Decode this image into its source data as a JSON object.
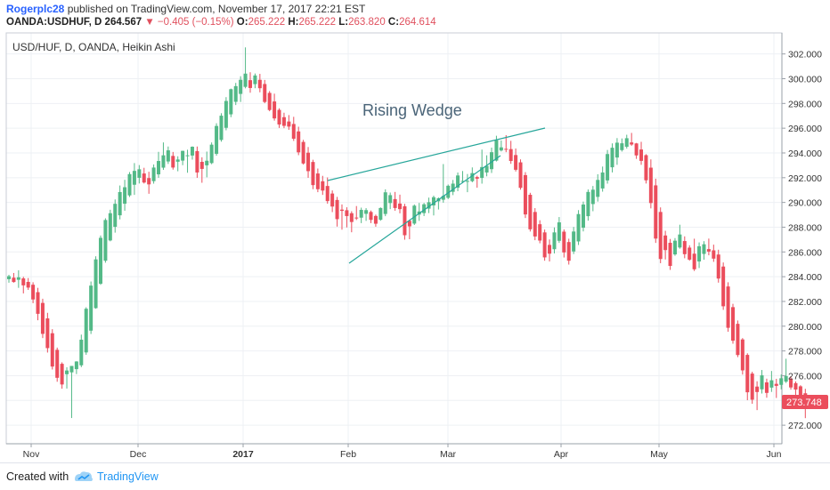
{
  "header": {
    "author": "Rogerplc28",
    "published_text": " published on TradingView.com, November 17, 2017 22:21 EST",
    "symbol": "OANDA:USDHUF, D",
    "last": "264.567",
    "change": "−0.405 (−0.15%)",
    "open_label": "O:",
    "open": "265.222",
    "high_label": "H:",
    "high": "265.222",
    "low_label": "L:",
    "low": "263.820",
    "close_label": "C:",
    "close": "264.614"
  },
  "chart_data": {
    "type": "candlestick",
    "title": "USD/HUF, D, OANDA, Heikin Ashi",
    "annotation": "Rising Wedge",
    "last_price_label": "273.748",
    "ylim": [
      270.5,
      303.7
    ],
    "y_ticks": [
      "272.000",
      "274.000",
      "276.000",
      "278.000",
      "280.000",
      "282.000",
      "284.000",
      "286.000",
      "288.000",
      "290.000",
      "292.000",
      "294.000",
      "296.000",
      "298.000",
      "300.000",
      "302.000"
    ],
    "x_ticks": [
      "Nov",
      "Dec",
      "2017",
      "Feb",
      "Mar",
      "Apr",
      "May",
      "Jun"
    ],
    "colors": {
      "up": "#53b987",
      "down": "#eb4d5c",
      "trendline": "#26a69a",
      "price_tag": "#eb4d5c"
    },
    "candles_ohlc": [
      [
        283.8,
        284.15,
        283.52,
        284.04
      ],
      [
        283.92,
        284.3,
        283.52,
        283.57
      ],
      [
        283.75,
        284.52,
        283.1,
        283.95
      ],
      [
        283.86,
        283.99,
        282.65,
        283.3
      ],
      [
        283.58,
        283.89,
        282.93,
        283.12
      ],
      [
        283.35,
        283.55,
        281.86,
        282.16
      ],
      [
        282.75,
        283.1,
        280.48,
        281.0
      ],
      [
        281.88,
        282.22,
        279.04,
        279.38
      ],
      [
        280.63,
        281.08,
        277.87,
        278.23
      ],
      [
        279.43,
        279.76,
        276.5,
        276.74
      ],
      [
        278.09,
        278.27,
        275.51,
        275.83
      ],
      [
        276.96,
        277.08,
        274.95,
        275.29
      ],
      [
        276.12,
        276.68,
        274.96,
        276.42
      ],
      [
        276.27,
        276.71,
        272.58,
        276.79
      ],
      [
        276.53,
        277.17,
        276.13,
        277.15
      ],
      [
        276.84,
        279.32,
        276.69,
        278.91
      ],
      [
        277.88,
        281.53,
        277.69,
        281.41
      ],
      [
        279.64,
        283.61,
        279.37,
        283.28
      ],
      [
        281.46,
        285.65,
        281.41,
        285.4
      ],
      [
        283.43,
        287.33,
        283.34,
        287.14
      ],
      [
        285.29,
        288.72,
        285.13,
        288.58
      ],
      [
        286.93,
        289.41,
        286.86,
        289.13
      ],
      [
        288.03,
        290.24,
        287.56,
        289.89
      ],
      [
        288.96,
        291.37,
        288.63,
        290.84
      ],
      [
        289.9,
        291.83,
        289.33,
        291.23
      ],
      [
        290.57,
        292.45,
        290.44,
        292.29
      ],
      [
        291.43,
        293.18,
        290.61,
        292.55
      ],
      [
        291.99,
        293.02,
        291.53,
        292.68
      ],
      [
        292.34,
        292.8,
        291.53,
        291.61
      ],
      [
        291.97,
        292.48,
        290.7,
        291.46
      ],
      [
        291.72,
        293.07,
        291.52,
        292.82
      ],
      [
        292.27,
        294.09,
        291.99,
        293.35
      ],
      [
        292.81,
        294.85,
        292.63,
        293.81
      ],
      [
        293.31,
        294.52,
        293.11,
        294.21
      ],
      [
        293.76,
        294.08,
        292.65,
        292.82
      ],
      [
        293.29,
        293.73,
        292.52,
        293.47
      ],
      [
        293.38,
        294.18,
        293.01,
        294.17
      ],
      [
        293.78,
        294.26,
        292.4,
        293.81
      ],
      [
        293.79,
        294.53,
        293.46,
        294.5
      ],
      [
        294.15,
        294.52,
        291.99,
        292.42
      ],
      [
        293.28,
        293.65,
        291.59,
        292.71
      ],
      [
        293.0,
        294.11,
        292.03,
        293.37
      ],
      [
        293.18,
        294.85,
        293.09,
        294.67
      ],
      [
        293.93,
        296.4,
        293.78,
        296.18
      ],
      [
        295.05,
        297.21,
        294.91,
        297.01
      ],
      [
        296.03,
        298.51,
        295.83,
        298.2
      ],
      [
        297.12,
        299.2,
        296.89,
        299.15
      ],
      [
        298.13,
        299.66,
        297.87,
        299.4
      ],
      [
        298.77,
        300.2,
        298.12,
        299.91
      ],
      [
        299.34,
        302.53,
        299.22,
        300.41
      ],
      [
        299.88,
        300.52,
        298.87,
        299.25
      ],
      [
        299.56,
        300.42,
        299.23,
        300.26
      ],
      [
        299.91,
        300.39,
        298.9,
        299.23
      ],
      [
        299.57,
        299.9,
        298.02,
        298.12
      ],
      [
        298.85,
        299.0,
        297.37,
        297.47
      ],
      [
        298.16,
        298.79,
        296.61,
        296.79
      ],
      [
        297.48,
        297.61,
        296.02,
        296.3
      ],
      [
        296.89,
        297.25,
        296.0,
        296.19
      ],
      [
        296.54,
        297.06,
        295.87,
        296.13
      ],
      [
        296.34,
        296.92,
        294.97,
        295.15
      ],
      [
        295.74,
        296.12,
        293.82,
        294.05
      ],
      [
        294.89,
        295.06,
        293.06,
        293.15
      ],
      [
        294.02,
        294.48,
        291.99,
        292.53
      ],
      [
        293.27,
        293.45,
        291.07,
        291.4
      ],
      [
        292.34,
        292.74,
        290.83,
        291.07
      ],
      [
        291.71,
        292.15,
        290.61,
        290.96
      ],
      [
        291.33,
        292.02,
        289.9,
        290.11
      ],
      [
        290.72,
        290.97,
        289.22,
        289.67
      ],
      [
        290.2,
        290.45,
        288.05,
        288.65
      ],
      [
        289.42,
        289.84,
        287.8,
        289.32
      ],
      [
        289.37,
        289.61,
        287.98,
        288.9
      ],
      [
        289.13,
        289.29,
        287.59,
        288.42
      ],
      [
        288.78,
        289.71,
        288.58,
        288.76
      ],
      [
        288.77,
        289.58,
        288.33,
        289.4
      ],
      [
        289.08,
        289.54,
        288.51,
        289.38
      ],
      [
        289.23,
        289.35,
        288.33,
        288.59
      ],
      [
        288.91,
        289.02,
        288.04,
        288.28
      ],
      [
        288.6,
        289.6,
        288.52,
        289.55
      ],
      [
        289.07,
        291.06,
        288.89,
        290.82
      ],
      [
        289.95,
        290.8,
        289.46,
        290.59
      ],
      [
        290.27,
        290.85,
        289.33,
        289.55
      ],
      [
        289.91,
        290.63,
        289.12,
        289.46
      ],
      [
        289.69,
        289.89,
        286.99,
        287.35
      ],
      [
        288.52,
        288.62,
        287.03,
        288.07
      ],
      [
        288.29,
        289.84,
        288.18,
        289.74
      ],
      [
        289.02,
        289.96,
        288.51,
        289.27
      ],
      [
        289.14,
        289.96,
        288.9,
        289.85
      ],
      [
        289.5,
        290.39,
        289.14,
        290.02
      ],
      [
        289.76,
        290.55,
        288.95,
        290.42
      ],
      [
        290.09,
        290.4,
        289.43,
        290.34
      ],
      [
        290.22,
        293.1,
        289.98,
        290.53
      ],
      [
        290.37,
        291.45,
        290.27,
        291.35
      ],
      [
        290.86,
        291.82,
        290.59,
        291.52
      ],
      [
        291.19,
        292.42,
        290.91,
        292.18
      ],
      [
        291.68,
        292.54,
        291.55,
        291.74
      ],
      [
        291.71,
        292.3,
        290.83,
        291.74
      ],
      [
        291.72,
        292.83,
        291.63,
        292.37
      ],
      [
        292.05,
        292.16,
        291.19,
        291.92
      ],
      [
        291.98,
        294.27,
        291.52,
        292.86
      ],
      [
        292.42,
        293.81,
        292.11,
        292.96
      ],
      [
        292.69,
        294.43,
        292.38,
        294.06
      ],
      [
        293.38,
        295.39,
        293.31,
        295.03
      ],
      [
        294.2,
        295.01,
        294.12,
        294.45
      ],
      [
        294.33,
        295.44,
        294.06,
        294.3
      ],
      [
        294.31,
        294.98,
        293.12,
        293.35
      ],
      [
        293.83,
        294.36,
        292.5,
        292.64
      ],
      [
        293.24,
        293.48,
        291.03,
        291.18
      ],
      [
        292.21,
        292.45,
        288.74,
        289.03
      ],
      [
        290.62,
        290.78,
        287.65,
        287.83
      ],
      [
        289.23,
        289.54,
        286.95,
        287.25
      ],
      [
        288.24,
        288.56,
        286.7,
        286.92
      ],
      [
        287.58,
        287.81,
        285.29,
        285.56
      ],
      [
        286.57,
        287.01,
        285.23,
        285.86
      ],
      [
        286.22,
        287.98,
        285.88,
        287.58
      ],
      [
        286.9,
        288.82,
        286.73,
        288.39
      ],
      [
        287.64,
        287.82,
        285.55,
        285.96
      ],
      [
        286.8,
        287.07,
        284.98,
        285.29
      ],
      [
        286.04,
        288.02,
        285.83,
        287.65
      ],
      [
        286.85,
        289.38,
        286.56,
        289.06
      ],
      [
        287.96,
        290.07,
        287.66,
        289.83
      ],
      [
        288.89,
        291.05,
        288.53,
        290.85
      ],
      [
        289.87,
        291.33,
        289.29,
        291.03
      ],
      [
        290.45,
        292.28,
        290.07,
        291.82
      ],
      [
        291.13,
        292.9,
        290.87,
        292.42
      ],
      [
        291.78,
        294.24,
        291.52,
        293.91
      ],
      [
        292.84,
        294.77,
        292.43,
        294.42
      ],
      [
        293.63,
        295.2,
        293.04,
        294.83
      ],
      [
        294.23,
        295.17,
        294.11,
        294.78
      ],
      [
        294.5,
        295.47,
        294.35,
        295.19
      ],
      [
        294.85,
        295.62,
        294.58,
        294.68
      ],
      [
        294.77,
        294.81,
        293.52,
        293.8
      ],
      [
        294.28,
        294.9,
        293.04,
        293.36
      ],
      [
        293.82,
        293.9,
        291.53,
        291.79
      ],
      [
        292.81,
        293.48,
        289.52,
        289.95
      ],
      [
        291.38,
        291.92,
        286.73,
        287.08
      ],
      [
        289.23,
        289.6,
        285.09,
        285.43
      ],
      [
        287.33,
        287.71,
        285.39,
        286.15
      ],
      [
        286.74,
        287.05,
        284.55,
        284.87
      ],
      [
        285.8,
        287.12,
        285.69,
        286.91
      ],
      [
        286.36,
        288.2,
        286.26,
        287.41
      ],
      [
        286.88,
        287.26,
        285.49,
        285.82
      ],
      [
        286.35,
        286.54,
        285.29,
        285.38
      ],
      [
        285.86,
        287.07,
        284.46,
        284.6
      ],
      [
        285.23,
        286.77,
        284.7,
        286.46
      ],
      [
        285.84,
        286.87,
        285.37,
        286.62
      ],
      [
        286.23,
        287.08,
        285.73,
        286.03
      ],
      [
        286.13,
        286.59,
        285.2,
        285.46
      ],
      [
        285.79,
        286.18,
        283.52,
        283.85
      ],
      [
        284.82,
        285.15,
        281.32,
        281.61
      ],
      [
        283.21,
        283.55,
        279.55,
        279.87
      ],
      [
        281.54,
        281.81,
        278.58,
        278.83
      ],
      [
        280.19,
        280.46,
        277.5,
        277.67
      ],
      [
        278.93,
        279.04,
        276.09,
        276.43
      ],
      [
        277.68,
        277.81,
        274.02,
        274.66
      ],
      [
        276.17,
        276.32,
        273.73,
        274.06
      ],
      [
        275.12,
        275.55,
        273.22,
        274.68
      ],
      [
        274.9,
        276.46,
        274.56,
        276.03
      ],
      [
        275.46,
        275.76,
        274.22,
        274.61
      ],
      [
        275.04,
        276.38,
        274.69,
        275.63
      ],
      [
        275.34,
        275.75,
        274.2,
        275.18
      ],
      [
        275.26,
        276.1,
        274.9,
        275.79
      ],
      [
        275.52,
        277.37,
        275.41,
        275.98
      ],
      [
        275.75,
        275.96,
        274.87,
        275.05
      ],
      [
        275.4,
        275.54,
        274.41,
        274.88
      ],
      [
        275.14,
        275.23,
        273.72,
        274.02
      ],
      [
        274.58,
        274.94,
        272.57,
        273.75
      ]
    ]
  },
  "footer": {
    "created_with": "Created with",
    "brand": "TradingView"
  }
}
